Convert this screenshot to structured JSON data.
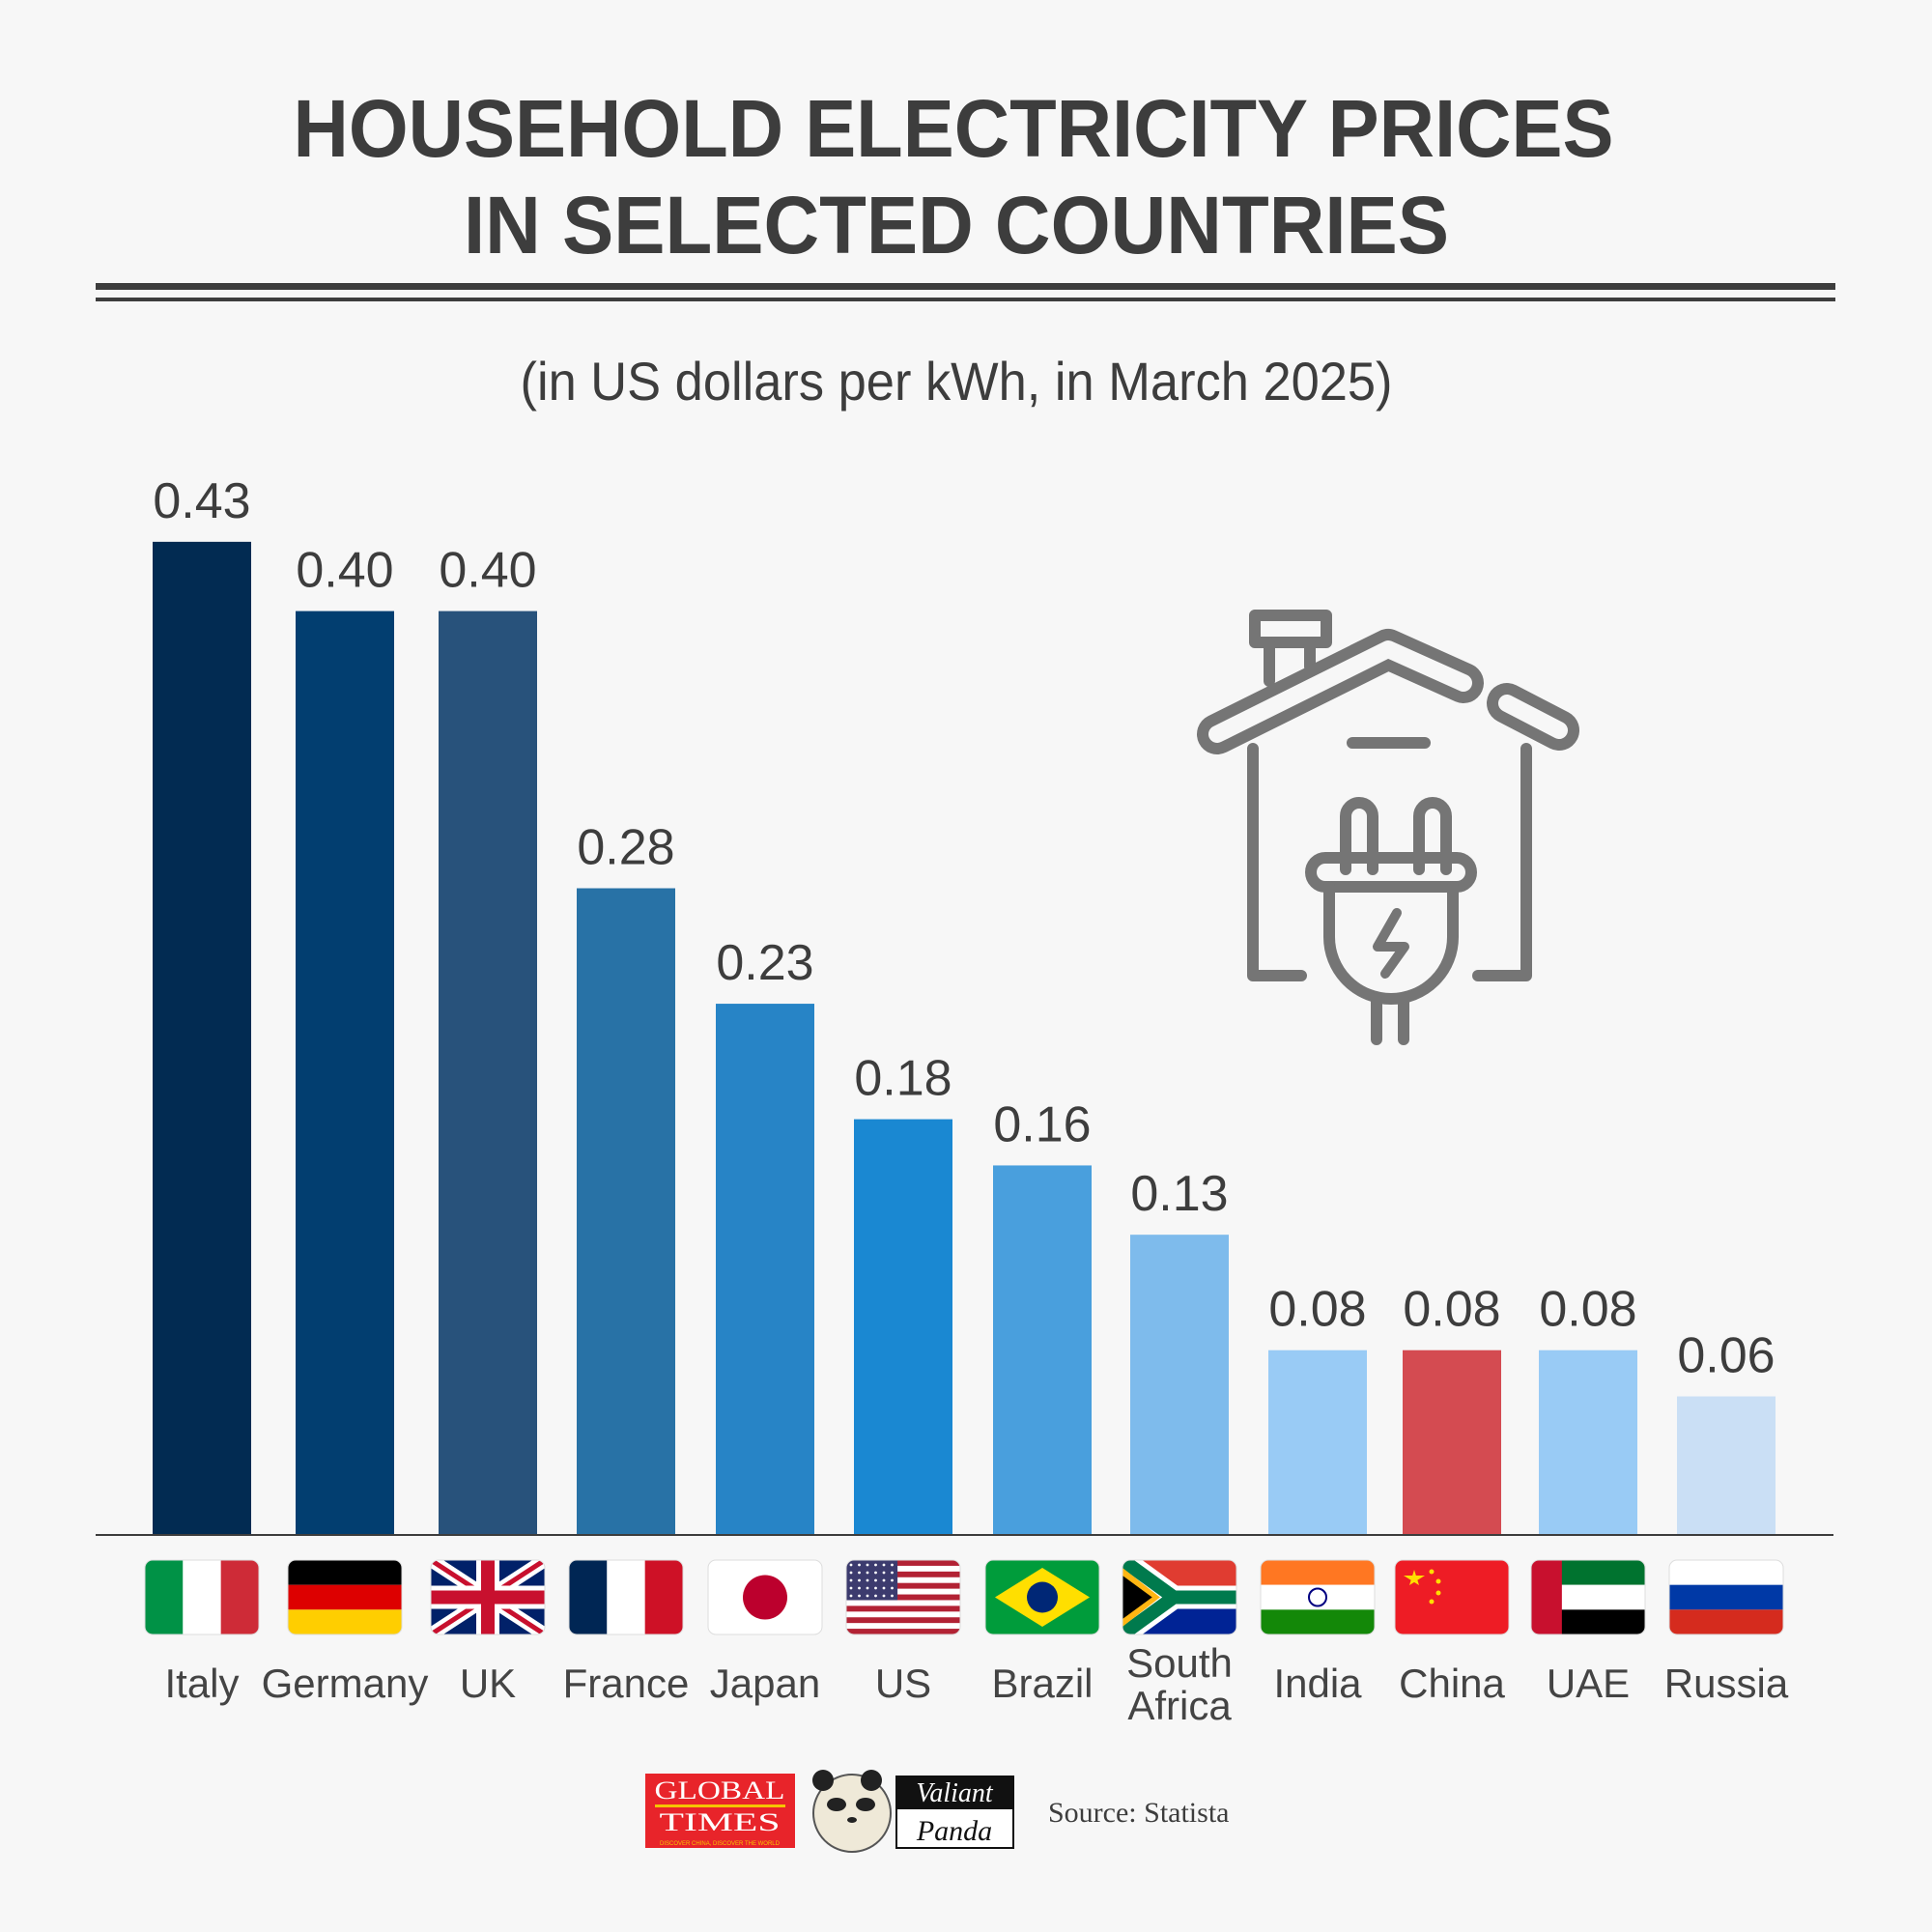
{
  "title_line1": "HOUSEHOLD ELECTRICITY PRICES",
  "title_line2": "IN SELECTED COUNTRIES",
  "subtitle": "(in US dollars per kWh, in March 2025)",
  "source": "Source: Statista",
  "logos": {
    "global_times": "GLOBAL TIMES",
    "global_times_tagline": "DISCOVER CHINA, DISCOVER THE WORLD",
    "valiant_panda": "Valiant Panda"
  },
  "icon": "house-with-plug-icon",
  "chart_data": {
    "type": "bar",
    "title": "HOUSEHOLD ELECTRICITY PRICES IN SELECTED COUNTRIES",
    "subtitle": "(in US dollars per kWh, in March 2025)",
    "categories": [
      "Italy",
      "Germany",
      "UK",
      "France",
      "Japan",
      "US",
      "Brazil",
      "South Africa",
      "India",
      "China",
      "UAE",
      "Russia"
    ],
    "values": [
      0.43,
      0.4,
      0.4,
      0.28,
      0.23,
      0.18,
      0.16,
      0.13,
      0.08,
      0.08,
      0.08,
      0.06
    ],
    "value_labels": [
      "0.43",
      "0.40",
      "0.40",
      "0.28",
      "0.23",
      "0.18",
      "0.16",
      "0.13",
      "0.08",
      "0.08",
      "0.08",
      "0.06"
    ],
    "colors": [
      "#022b52",
      "#023e70",
      "#28527b",
      "#2872a6",
      "#2784c6",
      "#1a88d2",
      "#499fdd",
      "#7ebbec",
      "#99cbf5",
      "#d44b51",
      "#99cbf5",
      "#cadff5"
    ],
    "highlight": {
      "category": "China",
      "color": "#d44b51"
    },
    "flags": [
      "italy-flag",
      "germany-flag",
      "uk-flag",
      "france-flag",
      "japan-flag",
      "us-flag",
      "brazil-flag",
      "south-africa-flag",
      "india-flag",
      "china-flag",
      "uae-flag",
      "russia-flag"
    ],
    "ylim": [
      0,
      0.45
    ],
    "grid": false,
    "legend": "none"
  }
}
